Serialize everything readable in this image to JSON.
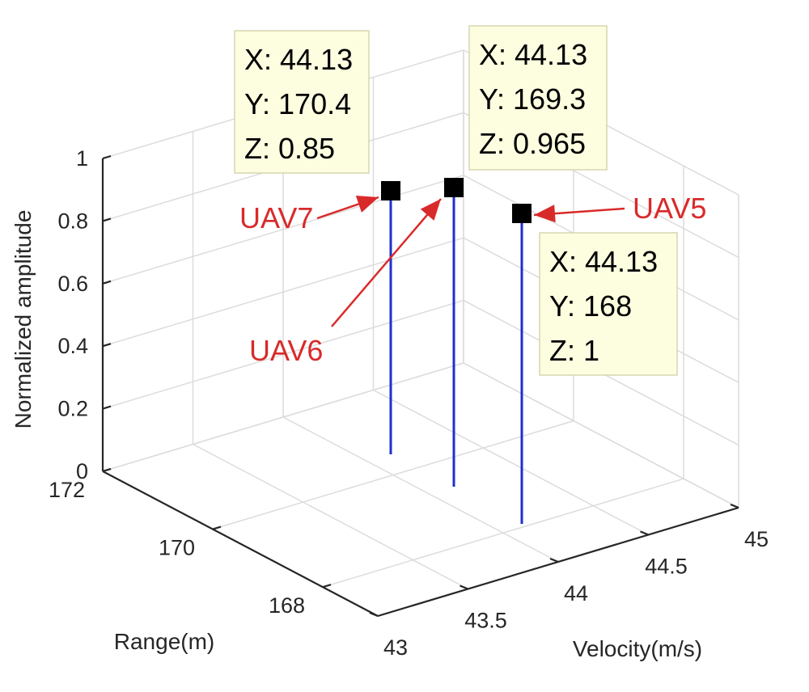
{
  "chart_data": {
    "type": "stem3",
    "title": "",
    "xlabel": "Velocity(m/s)",
    "ylabel": "Range(m)",
    "zlabel": "Normalized amplitude",
    "xlim": [
      43,
      45
    ],
    "ylim": [
      167,
      172
    ],
    "zlim": [
      0,
      1
    ],
    "x_ticks": [
      "43",
      "43.5",
      "44",
      "44.5",
      "45"
    ],
    "y_ticks": [
      "168",
      "170",
      "172"
    ],
    "z_ticks": [
      "0",
      "0.2",
      "0.4",
      "0.6",
      "0.8",
      "1"
    ],
    "grid": true,
    "colors": {
      "stem": "#1f2fcf",
      "marker": "#000000",
      "annotation": "#d92a2a",
      "datatip_bg": "#fdfde0"
    },
    "points": [
      {
        "name": "UAV7",
        "x": 44.13,
        "y": 170.4,
        "z": 0.85,
        "tip": [
          "X: 44.13",
          "Y: 170.4",
          "Z: 0.85"
        ]
      },
      {
        "name": "UAV6",
        "x": 44.13,
        "y": 169.3,
        "z": 0.965,
        "tip": [
          "X: 44.13",
          "Y: 169.3",
          "Z: 0.965"
        ]
      },
      {
        "name": "UAV5",
        "x": 44.13,
        "y": 168,
        "z": 1,
        "tip": [
          "X: 44.13",
          "Y: 168",
          "Z: 1"
        ]
      }
    ]
  }
}
